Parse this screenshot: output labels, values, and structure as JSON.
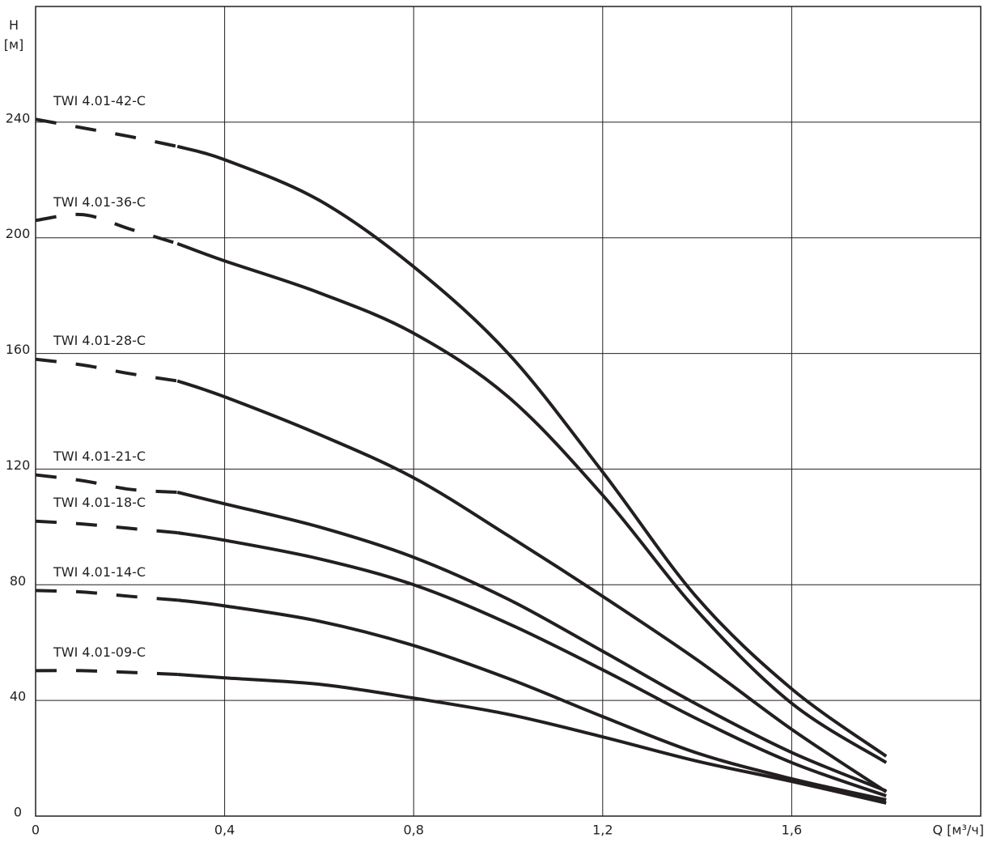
{
  "chart_data": {
    "type": "line",
    "ylabel": "H",
    "yunit": "[м]",
    "xlabel": "Q [м³/ч]",
    "x": [
      0,
      0.1,
      0.2,
      0.3,
      0.4,
      0.6,
      0.8,
      1.0,
      1.2,
      1.4,
      1.6,
      1.8
    ],
    "dashed_below": 0.3,
    "series": [
      {
        "name": "TWI 4.01-42-C",
        "color": "#231f20",
        "values": [
          241,
          238,
          235,
          231.6,
          227,
          213,
          190,
          160,
          119,
          75.5,
          44,
          20.7
        ]
      },
      {
        "name": "TWI 4.01-36-C",
        "color": "#231f20",
        "values": [
          206,
          208,
          203,
          198,
          192,
          181,
          167,
          145,
          111,
          71,
          39,
          18.5
        ]
      },
      {
        "name": "TWI 4.01-28-C",
        "color": "#231f20",
        "values": [
          158,
          156,
          153,
          150.5,
          145,
          132,
          117,
          97,
          76,
          54,
          30,
          8.4
        ]
      },
      {
        "name": "TWI 4.01-21-C",
        "color": "#231f20",
        "values": [
          118,
          116,
          113,
          112,
          108,
          100,
          89.5,
          75,
          57,
          38.6,
          22,
          8.7
        ]
      },
      {
        "name": "TWI 4.01-18-C",
        "color": "#231f20",
        "values": [
          102,
          101,
          99.5,
          98,
          95.4,
          89,
          80,
          66.6,
          50.6,
          33.6,
          18.5,
          7
        ]
      },
      {
        "name": "TWI 4.01-14-C",
        "color": "#231f20",
        "values": [
          78,
          77.5,
          76,
          74.7,
          72.7,
          67.4,
          59,
          47.6,
          34.4,
          21.8,
          12.9,
          5.6
        ]
      },
      {
        "name": "TWI 4.01-09-C",
        "color": "#231f20",
        "values": [
          50.3,
          50.3,
          49.7,
          49,
          47.8,
          45.6,
          40.8,
          35.2,
          27.4,
          19,
          12,
          4.5
        ]
      }
    ],
    "xlim": [
      0,
      2
    ],
    "ylim": [
      0,
      280
    ],
    "xticks": [
      0,
      {
        "value": 0.4,
        "label": "0,4"
      },
      {
        "value": 0.8,
        "label": "0,8"
      },
      {
        "value": 1.2,
        "label": "1,2"
      },
      {
        "value": 1.6,
        "label": "1,6"
      }
    ],
    "yticks": [
      0,
      40,
      80,
      120,
      160,
      200,
      240
    ],
    "grid": true
  }
}
